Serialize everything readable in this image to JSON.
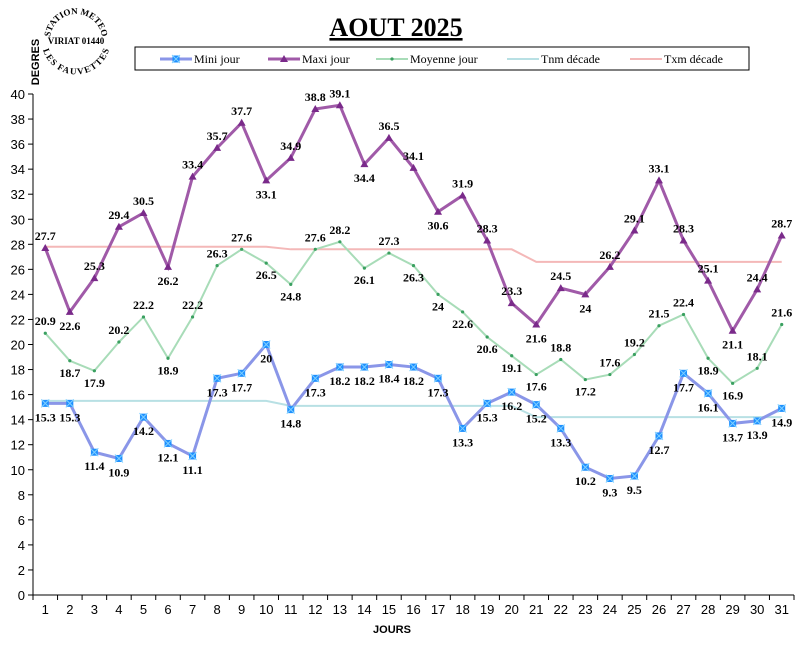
{
  "chart_data": {
    "type": "line",
    "title": "AOUT 2025",
    "xlabel": "JOURS",
    "ylabel": "DEGRES",
    "ylim": [
      0,
      40
    ],
    "ytick_step": 2,
    "grid": false,
    "legend_position": "top",
    "x": [
      1,
      2,
      3,
      4,
      5,
      6,
      7,
      8,
      9,
      10,
      11,
      12,
      13,
      14,
      15,
      16,
      17,
      18,
      19,
      20,
      21,
      22,
      23,
      24,
      25,
      26,
      27,
      28,
      29,
      30,
      31
    ],
    "series": [
      {
        "name": "Mini jour",
        "color": "#8a96e8",
        "marker": "star",
        "labels": true,
        "values": [
          15.3,
          15.3,
          11.4,
          10.9,
          14.2,
          12.1,
          11.1,
          17.3,
          17.7,
          20,
          14.8,
          17.3,
          18.2,
          18.2,
          18.4,
          18.2,
          17.3,
          13.3,
          15.3,
          16.2,
          15.2,
          13.3,
          10.2,
          9.3,
          9.5,
          12.7,
          17.7,
          16.1,
          13.7,
          13.9,
          14.9
        ]
      },
      {
        "name": "Maxi jour",
        "color": "#a05aa8",
        "marker": "triangle",
        "labels": true,
        "values": [
          27.7,
          22.6,
          25.3,
          29.4,
          30.5,
          26.2,
          33.4,
          35.7,
          37.7,
          33.1,
          34.9,
          38.8,
          39.1,
          34.4,
          36.5,
          34.1,
          30.6,
          31.9,
          28.3,
          23.3,
          21.6,
          24.5,
          24,
          26.2,
          29.1,
          33.1,
          28.3,
          25.1,
          21.1,
          24.4,
          28.7
        ]
      },
      {
        "name": "Moyenne jour",
        "color": "#a8dcb8",
        "marker": "dot",
        "labels": true,
        "values": [
          20.9,
          18.7,
          17.9,
          20.2,
          22.2,
          18.9,
          22.2,
          26.3,
          27.6,
          26.5,
          24.8,
          27.6,
          28.2,
          26.1,
          27.3,
          26.3,
          24,
          22.6,
          20.6,
          19.1,
          17.6,
          18.8,
          17.2,
          17.6,
          19.2,
          21.5,
          22.4,
          18.9,
          16.9,
          18.1,
          21.6
        ]
      },
      {
        "name": "Tnm décade",
        "color": "#b8e0e4",
        "marker": "none",
        "labels": false,
        "values": [
          15.5,
          15.5,
          15.5,
          15.5,
          15.5,
          15.5,
          15.5,
          15.5,
          15.5,
          15.5,
          15.1,
          15.1,
          15.1,
          15.1,
          15.1,
          15.1,
          15.1,
          15.1,
          15.1,
          15.1,
          14.2,
          14.2,
          14.2,
          14.2,
          14.2,
          14.2,
          14.2,
          14.2,
          14.2,
          14.2,
          14.2
        ]
      },
      {
        "name": "Txm décade",
        "color": "#f4b8b8",
        "marker": "none",
        "labels": false,
        "values": [
          27.8,
          27.8,
          27.8,
          27.8,
          27.8,
          27.8,
          27.8,
          27.8,
          27.8,
          27.8,
          27.6,
          27.6,
          27.6,
          27.6,
          27.6,
          27.6,
          27.6,
          27.6,
          27.6,
          27.6,
          26.6,
          26.6,
          26.6,
          26.6,
          26.6,
          26.6,
          26.6,
          26.6,
          26.6,
          26.6,
          26.6
        ]
      }
    ]
  },
  "logo": {
    "top": "STATION METEO",
    "middle": "VIRIAT 01440",
    "bottom": "LES FAUVETTES"
  }
}
